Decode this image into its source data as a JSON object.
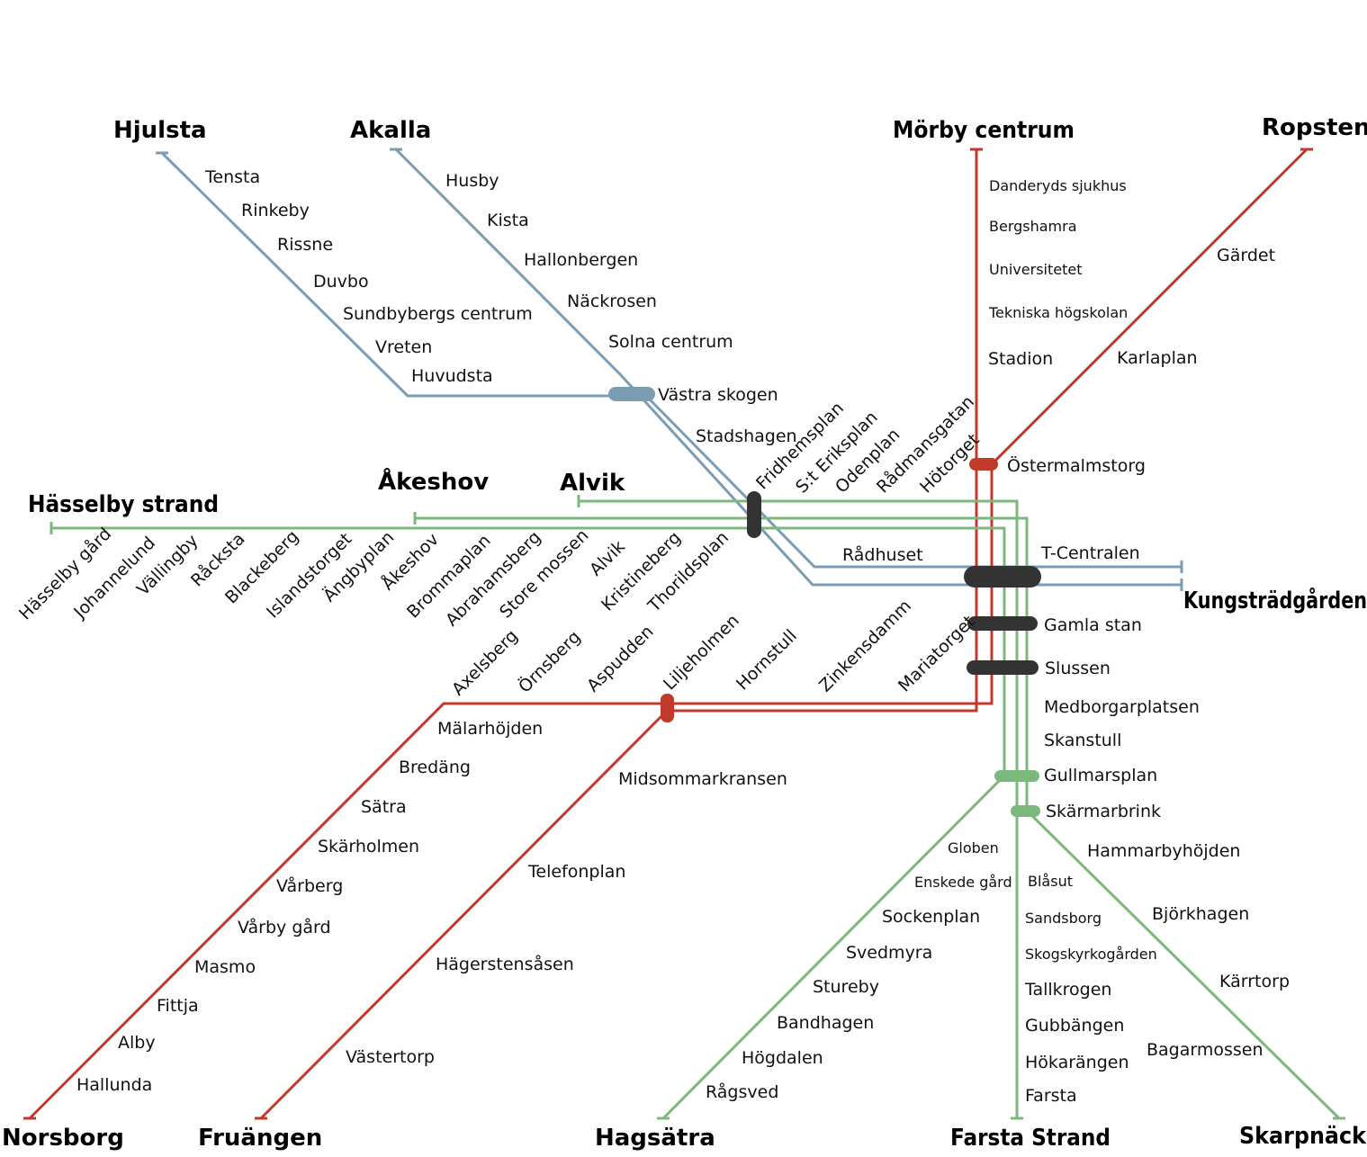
{
  "colors": {
    "blue": "#7b9db4",
    "red": "#c0392b",
    "green": "#7cb87c",
    "interchange": "#333333"
  },
  "termini": {
    "hjulsta": "Hjulsta",
    "akalla": "Akalla",
    "morby": "Mörby centrum",
    "ropsten": "Ropsten",
    "hasselby": "Hässelby strand",
    "akeshov": "Åkeshov",
    "alvik": "Alvik",
    "kungstradgarden": "Kungsträdgården",
    "norsborg": "Norsborg",
    "fruangen": "Fruängen",
    "hagsatra": "Hagsätra",
    "farsta": "Farsta Strand",
    "skarpnack": "Skarpnäck"
  },
  "stations": {
    "tensta": "Tensta",
    "rinkeby": "Rinkeby",
    "rissne": "Rissne",
    "duvbo": "Duvbo",
    "sundbyberg": "Sundbybergs centrum",
    "vreten": "Vreten",
    "huvudsta": "Huvudsta",
    "husby": "Husby",
    "kista": "Kista",
    "hallonbergen": "Hallonbergen",
    "nackrosen": "Näckrosen",
    "solna": "Solna centrum",
    "vastra_skogen": "Västra skogen",
    "stadshagen": "Stadshagen",
    "fridhemsplan": "Fridhemsplan",
    "st_eriksplan": "S:t Eriksplan",
    "odenplan": "Odenplan",
    "radmansgatan": "Rådmansgatan",
    "hotorget": "Hötorget",
    "radhuset": "Rådhuset",
    "t_centralen": "T-Centralen",
    "danderyd": "Danderyds sjukhus",
    "bergshamra": "Bergshamra",
    "universitetet": "Universitetet",
    "tekniska": "Tekniska högskolan",
    "stadion": "Stadion",
    "ostermalmstorg": "Östermalmstorg",
    "gardet": "Gärdet",
    "karlaplan": "Karlaplan",
    "hasselby_gard": "Hässelby gård",
    "johannelund": "Johannelund",
    "vallingby": "Vällingby",
    "racksta": "Råcksta",
    "blackeberg": "Blackeberg",
    "islandstorget": "Islandstorget",
    "angbyplan": "Ängbyplan",
    "akeshov_st": "Åkeshov",
    "brommaplan": "Brommaplan",
    "abrahamsberg": "Abrahamsberg",
    "store_mossen": "Store mossen",
    "alvik_st": "Alvik",
    "kristineberg": "Kristineberg",
    "thorildsplan": "Thorildsplan",
    "axelsberg": "Axelsberg",
    "ornsberg": "Örnsberg",
    "aspudden": "Aspudden",
    "liljeholmen": "Liljeholmen",
    "hornstull": "Hornstull",
    "zinkensdamm": "Zinkensdamm",
    "mariatorget": "Mariatorget",
    "gamla_stan": "Gamla stan",
    "slussen": "Slussen",
    "malarhojden": "Mälarhöjden",
    "bredang": "Bredäng",
    "satra": "Sätra",
    "skarholmen": "Skärholmen",
    "varberg": "Vårberg",
    "varby_gard": "Vårby gård",
    "masmo": "Masmo",
    "fittja": "Fittja",
    "alby": "Alby",
    "hallunda": "Hallunda",
    "midsommarkransen": "Midsommarkransen",
    "telefonplan": "Telefonplan",
    "hagerstensasen": "Hägerstensåsen",
    "vastertorp": "Västertorp",
    "medborgarplatsen": "Medborgarplatsen",
    "skanstull": "Skanstull",
    "gullmarsplan": "Gullmarsplan",
    "skarmarbrink": "Skärmarbrink",
    "globen": "Globen",
    "enskede_gard": "Enskede gård",
    "sockenplan": "Sockenplan",
    "svedmyra": "Svedmyra",
    "stureby": "Stureby",
    "bandhagen": "Bandhagen",
    "hogdalen": "Högdalen",
    "ragsved": "Rågsved",
    "blasut": "Blåsut",
    "sandsborg": "Sandsborg",
    "skogskyrkogarden": "Skogskyrkogården",
    "tallkrogen": "Tallkrogen",
    "gubbangen": "Gubbängen",
    "hokarangen": "Hökarängen",
    "farsta": "Farsta",
    "hammarbyhojden": "Hammarbyhöjden",
    "bjorkhagen": "Björkhagen",
    "karrtorp": "Kärrtorp",
    "bagarmossen": "Bagarmossen"
  }
}
